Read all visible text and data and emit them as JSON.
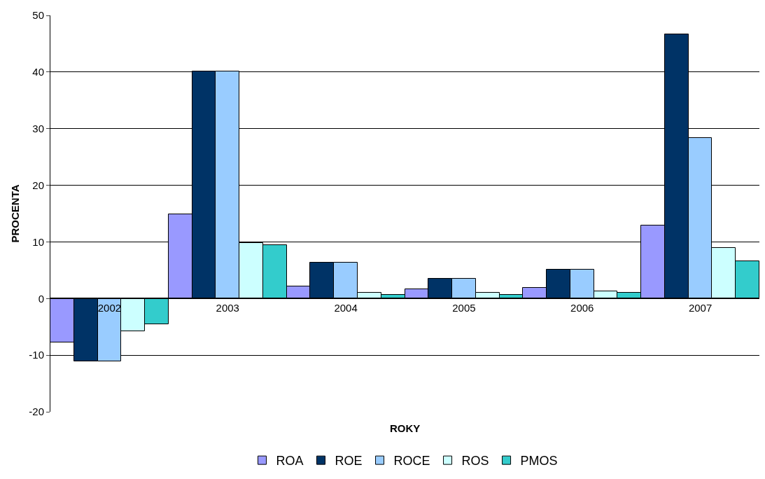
{
  "chart_data": {
    "type": "bar",
    "xlabel": "ROKY",
    "ylabel": "PROCENTA",
    "categories": [
      "2002",
      "2003",
      "2004",
      "2005",
      "2006",
      "2007"
    ],
    "series": [
      {
        "name": "ROA",
        "color": "#9999ff",
        "values": [
          -7.7,
          14.9,
          2.2,
          1.7,
          1.9,
          12.9
        ]
      },
      {
        "name": "ROE",
        "color": "#003366",
        "values": [
          -11.1,
          40.1,
          6.4,
          3.5,
          5.1,
          46.7
        ]
      },
      {
        "name": "ROCE",
        "color": "#99ccff",
        "values": [
          -11.1,
          40.1,
          6.4,
          3.5,
          5.1,
          28.4
        ]
      },
      {
        "name": "ROS",
        "color": "#ccffff",
        "values": [
          -5.8,
          9.8,
          1.0,
          1.0,
          1.3,
          8.9
        ]
      },
      {
        "name": "PMOS",
        "color": "#33cccc",
        "values": [
          -4.5,
          9.4,
          0.7,
          0.7,
          1.0,
          6.6
        ]
      }
    ],
    "ylim": [
      -20,
      50
    ],
    "yticks": [
      -20,
      -10,
      0,
      10,
      20,
      30,
      40,
      50
    ],
    "grid": "y",
    "legend": "bottom"
  }
}
